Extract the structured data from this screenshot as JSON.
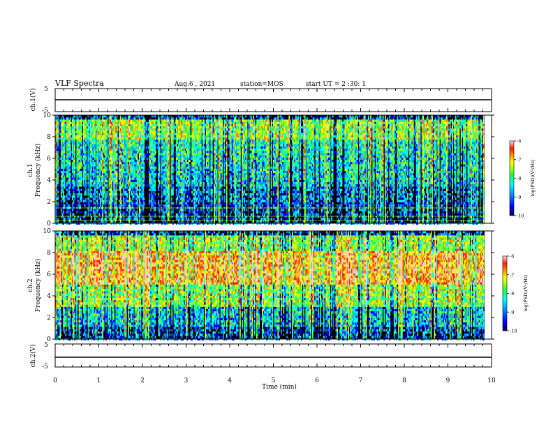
{
  "header": {
    "title": "VLF Spectra",
    "date": "Aug.6 , 2021",
    "station": "station=MOS",
    "start": "start UT = 2 :30: 1"
  },
  "colors": {
    "background": "#000000",
    "trace": "#000000",
    "colormap": [
      "#000080",
      "#0000ff",
      "#00a0ff",
      "#00ffff",
      "#20ff60",
      "#c0ff00",
      "#ffff00",
      "#ff8000",
      "#ff2000",
      "#ffd0d0"
    ]
  },
  "chart_data": [
    {
      "type": "line",
      "name": "waveform-ch1",
      "ylabel": "ch.1(V)",
      "ylim": [
        -5,
        5
      ],
      "yticks": [
        "5",
        "-5"
      ],
      "xlim": [
        0,
        10
      ],
      "level": 0
    },
    {
      "type": "heatmap",
      "name": "spectrogram-ch1",
      "ylabel": "ch.1\nFrequency (kHz)",
      "ylim": [
        0,
        10
      ],
      "yticks": [
        "0",
        "2",
        "4",
        "6",
        "8",
        "10"
      ],
      "xlim": [
        0,
        10
      ],
      "colorbar": {
        "label": "log(PSD)(V²/Hz)",
        "range": [
          -10,
          -6
        ],
        "ticks": [
          "-6",
          "-7",
          "-8",
          "-9",
          "-10"
        ]
      }
    },
    {
      "type": "heatmap",
      "name": "spectrogram-ch2",
      "ylabel": "ch.2\nFrequency (kHz)",
      "ylim": [
        0,
        10
      ],
      "yticks": [
        "0",
        "2",
        "4",
        "6",
        "8",
        "10"
      ],
      "xlim": [
        0,
        10
      ],
      "colorbar": {
        "label": "log(PSD)(V²/Hz)",
        "range": [
          -10,
          -6
        ],
        "ticks": [
          "-6",
          "-7",
          "-8",
          "-9",
          "-10"
        ]
      }
    },
    {
      "type": "line",
      "name": "waveform-ch2",
      "ylabel": "ch.2(V)",
      "ylim": [
        -5,
        5
      ],
      "yticks": [
        "5",
        "-5"
      ],
      "xlim": [
        0,
        10
      ],
      "level": 0
    }
  ],
  "xaxis": {
    "label": "Time (min)",
    "ticks": [
      "0",
      "1",
      "2",
      "3",
      "4",
      "5",
      "6",
      "7",
      "8",
      "9",
      "10"
    ],
    "range": [
      0,
      10
    ]
  }
}
